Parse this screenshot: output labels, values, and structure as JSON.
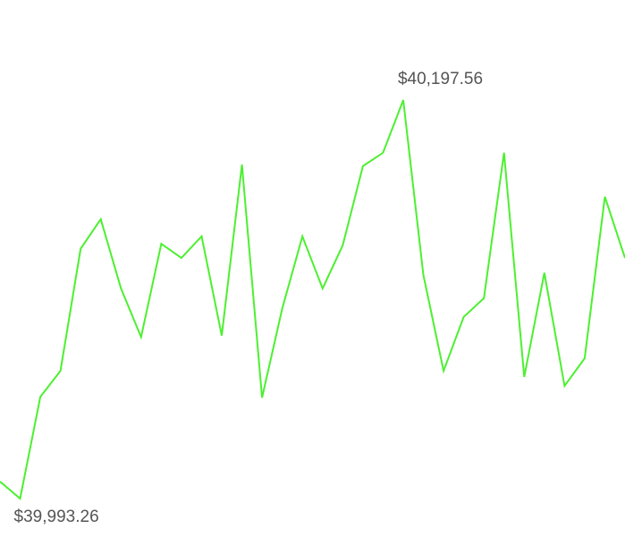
{
  "chart_data": {
    "type": "line",
    "title": "",
    "xlabel": "",
    "ylabel": "",
    "grid": false,
    "legend": "none",
    "ylim": [
      39960,
      40240
    ],
    "series": [
      {
        "color": "#4cf030",
        "values": [
          40002.0,
          39993.26,
          40045.4,
          40058.7,
          40121.4,
          40136.5,
          40101.0,
          40076.1,
          40123.9,
          40116.6,
          40127.7,
          40076.8,
          40164.5,
          40045.0,
          40090.8,
          40127.7,
          40101.0,
          40123.1,
          40163.7,
          40170.6,
          40197.56,
          40107.9,
          40058.7,
          40086.4,
          40096.0,
          40170.6,
          40055.6,
          40109.0,
          40051.0,
          40065.2,
          40148.0,
          40116.6
        ]
      }
    ],
    "annotations": {
      "max_label": "$40,197.56",
      "min_label": "$39,993.26"
    }
  }
}
